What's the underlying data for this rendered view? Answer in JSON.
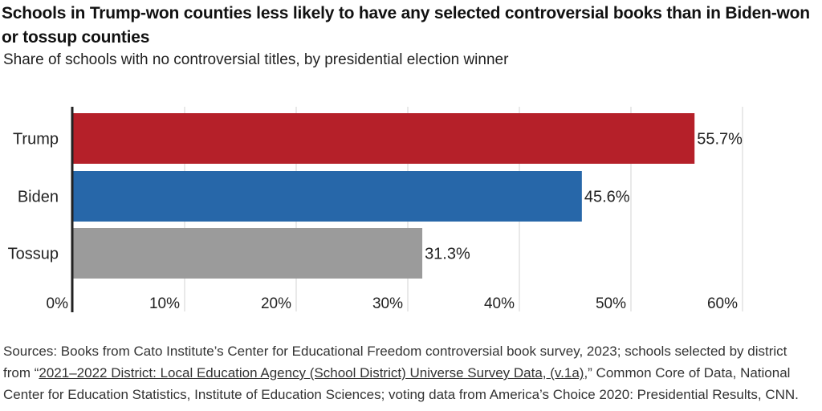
{
  "title": "Schools in Trump-won counties less likely to have any selected controversial books than in Biden-won or tossup counties",
  "subtitle": "Share of schools with no controversial titles, by presidential election winner",
  "chart_data": {
    "type": "bar",
    "orientation": "horizontal",
    "categories": [
      "Trump",
      "Biden",
      "Tossup"
    ],
    "values": [
      55.7,
      45.6,
      31.3
    ],
    "value_labels": [
      "55.7%",
      "45.6%",
      "31.3%"
    ],
    "colors": [
      "#b52029",
      "#2767a9",
      "#9b9b9b"
    ],
    "xlim": [
      0,
      60
    ],
    "xticks": [
      0,
      10,
      20,
      30,
      40,
      50,
      60
    ],
    "xtick_labels": [
      "0%",
      "10%",
      "20%",
      "30%",
      "40%",
      "50%",
      "60%"
    ],
    "grid": true,
    "title": "Schools in Trump-won counties less likely to have any selected controversial books than in Biden-won or tossup counties",
    "subtitle": "Share of schools with no controversial titles, by presidential election winner"
  },
  "source": {
    "prefix": "Sources: Books from Cato Institute’s Center for Educational Freedom controversial book survey, 2023; schools selected by district from “",
    "link": "2021–2022 District: Local Education Agency (School District) Universe Survey Data, (v.1a)",
    "suffix": ",” Common Core of Data, National Center for Education Statistics, Institute of Education Sciences; voting data from America’s Choice 2020: Presidential Results, CNN."
  }
}
